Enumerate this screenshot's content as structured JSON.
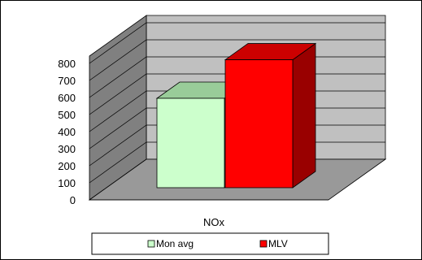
{
  "chart_data": {
    "type": "bar",
    "style": "3d-clustered-column",
    "categories": [
      "NOx"
    ],
    "series": [
      {
        "name": "Mon avg",
        "values": [
          580
        ],
        "color": "#ccffcc",
        "side_color": "#99cc99",
        "top_color": "#99cc99"
      },
      {
        "name": "MLV",
        "values": [
          830
        ],
        "color": "#ff0000",
        "side_color": "#990000",
        "top_color": "#cc0000"
      }
    ],
    "title": "",
    "xlabel": "",
    "ylabel": "",
    "ylim": [
      0,
      800
    ],
    "yticks": [
      0,
      100,
      200,
      300,
      400,
      500,
      600,
      700,
      800
    ],
    "grid": true,
    "legend": "bottom",
    "wall_color": "#c0c0c0",
    "floor_color": "#999999",
    "side_wall_color": "#808080"
  }
}
